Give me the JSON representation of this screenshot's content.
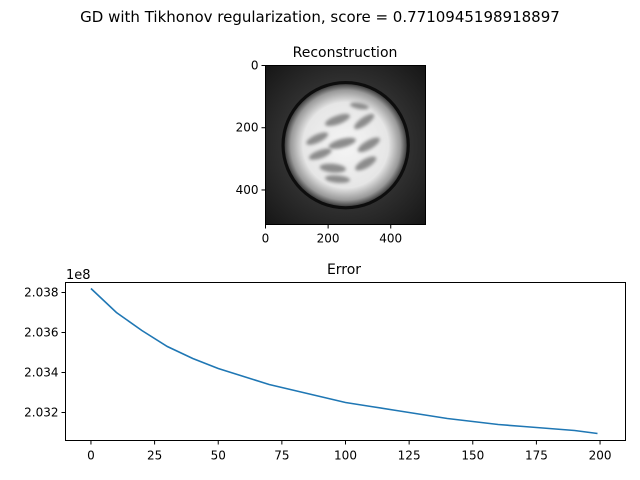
{
  "figure": {
    "suptitle": "GD with Tikhonov regularization, score = 0.7710945198918897"
  },
  "chart_data": [
    {
      "type": "heatmap",
      "title": "Reconstruction",
      "colormap": "gray",
      "xlim": [
        0,
        511
      ],
      "ylim": [
        511,
        0
      ],
      "x_ticks": [
        0,
        200,
        400
      ],
      "y_ticks": [
        0,
        200,
        400
      ],
      "x_tick_labels": [
        "0",
        "200",
        "400"
      ],
      "y_tick_labels": [
        "0",
        "200",
        "400"
      ],
      "image": {
        "background_level": 0.12,
        "disk_center": [
          256,
          256
        ],
        "disk_radius": 195,
        "disk_level": 0.9,
        "inner_ring_radius": 205,
        "inner_ring_level": 0.05,
        "blobs": [
          {
            "cx": 230,
            "cy": 175,
            "rx": 42,
            "ry": 14,
            "angle": -20
          },
          {
            "cx": 315,
            "cy": 180,
            "rx": 38,
            "ry": 13,
            "angle": -35
          },
          {
            "cx": 300,
            "cy": 130,
            "rx": 30,
            "ry": 10,
            "angle": 10
          },
          {
            "cx": 165,
            "cy": 235,
            "rx": 38,
            "ry": 13,
            "angle": -25
          },
          {
            "cx": 245,
            "cy": 250,
            "rx": 45,
            "ry": 14,
            "angle": -15
          },
          {
            "cx": 330,
            "cy": 255,
            "rx": 40,
            "ry": 14,
            "angle": -30
          },
          {
            "cx": 175,
            "cy": 285,
            "rx": 38,
            "ry": 13,
            "angle": -20
          },
          {
            "cx": 215,
            "cy": 330,
            "rx": 42,
            "ry": 14,
            "angle": 5
          },
          {
            "cx": 320,
            "cy": 315,
            "rx": 38,
            "ry": 14,
            "angle": -30
          },
          {
            "cx": 230,
            "cy": 365,
            "rx": 40,
            "ry": 12,
            "angle": 5
          }
        ],
        "blob_level": 0.55
      }
    },
    {
      "type": "line",
      "title": "Error",
      "xlabel": "",
      "ylabel": "",
      "offset_text": "1e8",
      "xlim": [
        -10,
        210
      ],
      "ylim": [
        203.06,
        203.85
      ],
      "x_ticks": [
        0,
        25,
        50,
        75,
        100,
        125,
        150,
        175,
        200
      ],
      "y_ticks": [
        203.2,
        203.4,
        203.6,
        203.8
      ],
      "y_tick_labels": [
        "2.032",
        "2.034",
        "2.036",
        "2.038"
      ],
      "series": [
        {
          "color": "#1f77b4",
          "x": [
            0,
            10,
            20,
            30,
            40,
            50,
            60,
            70,
            80,
            90,
            100,
            110,
            120,
            130,
            140,
            150,
            160,
            170,
            180,
            190,
            199
          ],
          "y": [
            203.82,
            203.7,
            203.61,
            203.53,
            203.47,
            203.42,
            203.38,
            203.34,
            203.31,
            203.28,
            203.25,
            203.23,
            203.21,
            203.19,
            203.17,
            203.155,
            203.14,
            203.13,
            203.12,
            203.11,
            203.095
          ]
        }
      ]
    }
  ]
}
